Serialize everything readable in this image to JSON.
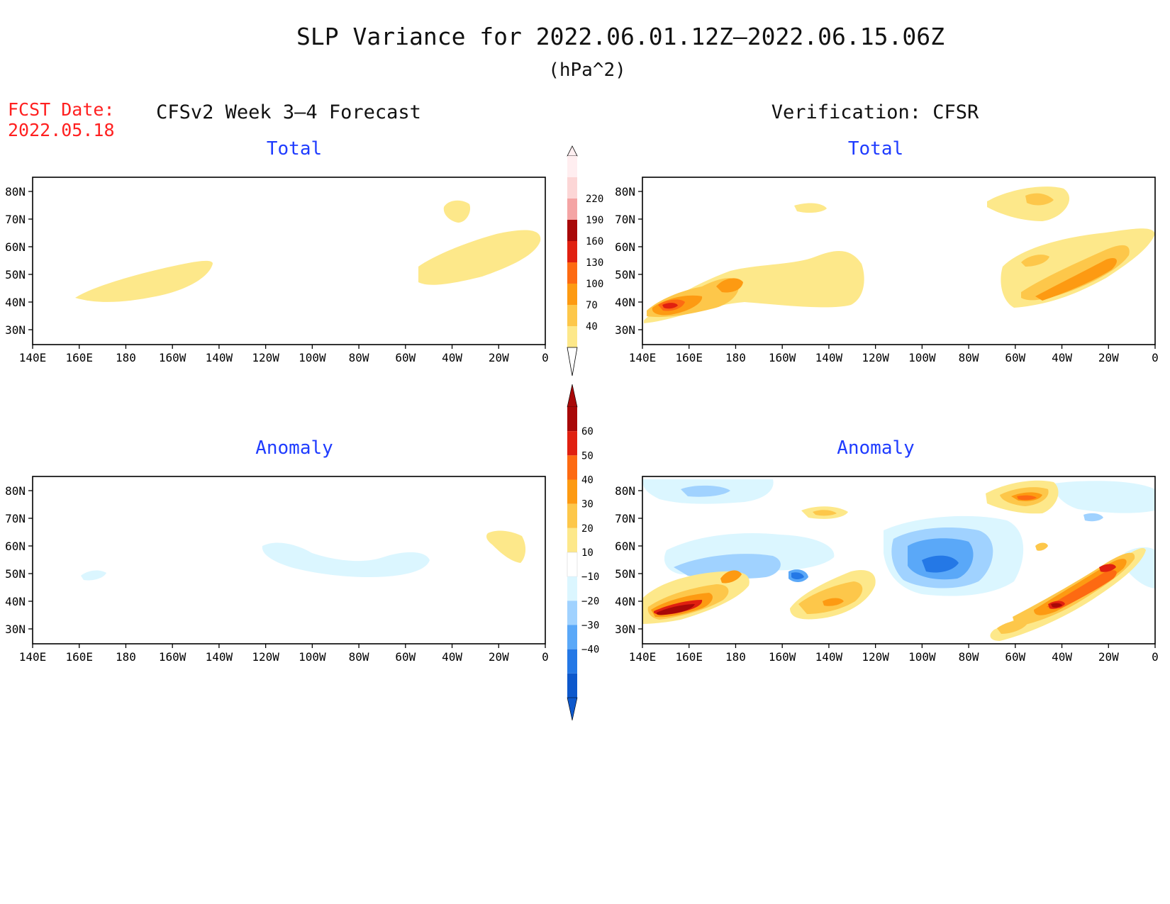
{
  "header": {
    "title": "SLP Variance for 2022.06.01.12Z–2022.06.15.06Z",
    "units": "(hPa^2)",
    "fcst_date_label": "FCST Date:",
    "fcst_date_value": "2022.05.18",
    "left_column_title": "CFSv2 Week 3–4 Forecast",
    "right_column_title": "Verification: CFSR",
    "color_red": "#ff2020",
    "color_blue": "#1f3cff"
  },
  "panels": {
    "fc_total": {
      "title": "Total"
    },
    "vf_total": {
      "title": "Total"
    },
    "fc_anom": {
      "title": "Anomaly"
    },
    "vf_anom": {
      "title": "Anomaly"
    }
  },
  "axes": {
    "lat_labels": [
      "80N",
      "70N",
      "60N",
      "50N",
      "40N",
      "30N"
    ],
    "lat_values": [
      80,
      70,
      60,
      50,
      40,
      30
    ],
    "lon_labels": [
      "140E",
      "160E",
      "180",
      "160W",
      "140W",
      "120W",
      "100W",
      "80W",
      "60W",
      "40W",
      "20W",
      "0"
    ],
    "lon_values": [
      140,
      160,
      180,
      200,
      220,
      240,
      260,
      280,
      300,
      320,
      340,
      360
    ],
    "lon_range": [
      140,
      360
    ],
    "lat_range": [
      25,
      85
    ]
  },
  "colorbars": {
    "total": {
      "labels": [
        "40",
        "70",
        "100",
        "130",
        "160",
        "190",
        "220"
      ],
      "colors": [
        "#fde88a",
        "#fdc74a",
        "#fd9a12",
        "#fd6a12",
        "#e02010",
        "#a80808",
        "#f4a4a4",
        "#fcd6d6",
        "#ffeef0"
      ]
    },
    "anomaly": {
      "labels": [
        "60",
        "50",
        "40",
        "30",
        "20",
        "10",
        "−10",
        "−20",
        "−30",
        "−40"
      ],
      "colors": [
        "#a80808",
        "#e02010",
        "#fd6a12",
        "#fd9a12",
        "#fdc74a",
        "#fde88a",
        "#ffffff",
        "#dbf6ff",
        "#a0d2ff",
        "#5aa8f8",
        "#2478e6",
        "#0d58cc"
      ]
    }
  },
  "icons": {
    "coastline": "coastline-map-icon"
  }
}
